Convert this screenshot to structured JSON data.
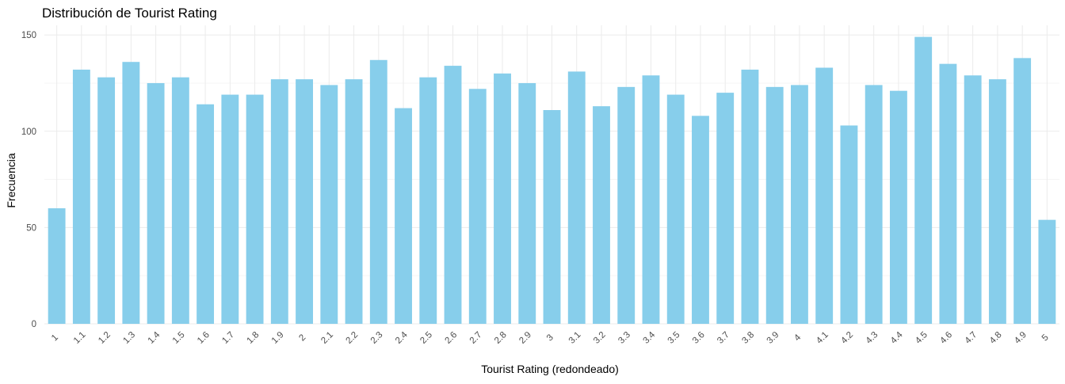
{
  "chart_data": {
    "type": "bar",
    "title": "Distribución de Tourist Rating",
    "xlabel": "Tourist Rating (redondeado)",
    "ylabel": "Frecuencia",
    "categories": [
      "1",
      "1.1",
      "1.2",
      "1.3",
      "1.4",
      "1.5",
      "1.6",
      "1.7",
      "1.8",
      "1.9",
      "2",
      "2.1",
      "2.2",
      "2.3",
      "2.4",
      "2.5",
      "2.6",
      "2.7",
      "2.8",
      "2.9",
      "3",
      "3.1",
      "3.2",
      "3.3",
      "3.4",
      "3.5",
      "3.6",
      "3.7",
      "3.8",
      "3.9",
      "4",
      "4.1",
      "4.2",
      "4.3",
      "4.4",
      "4.5",
      "4.6",
      "4.7",
      "4.8",
      "4.9",
      "5"
    ],
    "values": [
      60,
      132,
      128,
      136,
      125,
      128,
      114,
      119,
      119,
      127,
      127,
      124,
      127,
      137,
      112,
      128,
      134,
      122,
      130,
      125,
      111,
      131,
      113,
      123,
      129,
      119,
      108,
      120,
      132,
      123,
      124,
      133,
      103,
      124,
      121,
      149,
      135,
      129,
      127,
      138,
      54
    ],
    "ylim": [
      0,
      155
    ],
    "yticks": [
      0,
      50,
      100,
      150
    ],
    "bar_color": "#87CEEB",
    "grid": true,
    "legend": "none"
  }
}
